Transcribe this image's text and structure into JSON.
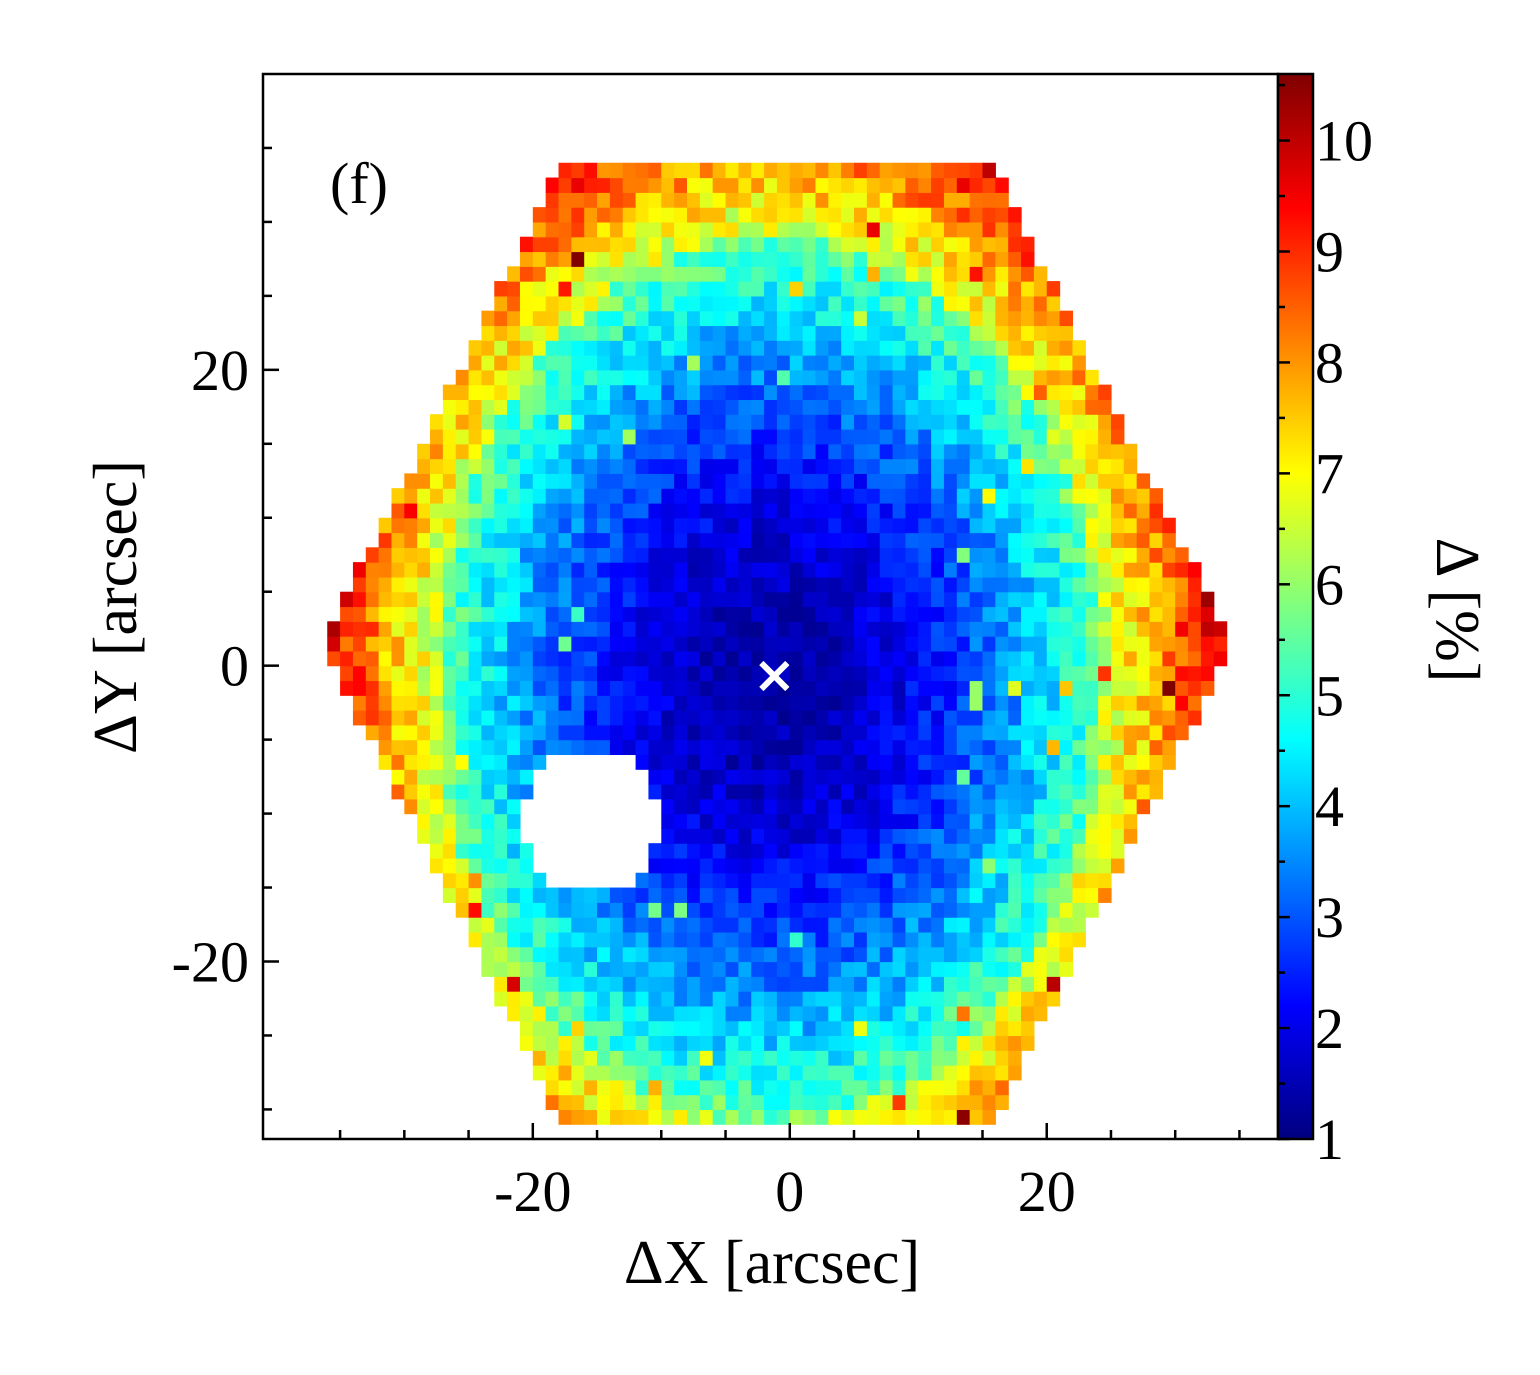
{
  "chart_data": {
    "type": "heatmap",
    "panel_label": "(f)",
    "xlabel": "ΔX [arcsec]",
    "ylabel": "ΔY [arcsec]",
    "colorbar_label": "Δ [%]",
    "xlim": [
      -41,
      38
    ],
    "ylim": [
      -32,
      40
    ],
    "x_ticks": [
      -20,
      0,
      20
    ],
    "y_ticks": [
      -20,
      0,
      20
    ],
    "x_tick_labels": [
      "-20",
      "0",
      "20"
    ],
    "y_tick_labels": [
      "-20",
      "0",
      "20"
    ],
    "colorbar_range": [
      1,
      10.6
    ],
    "colorbar_ticks": [
      1,
      2,
      3,
      4,
      5,
      6,
      7,
      8,
      9,
      10
    ],
    "colorbar_tick_labels": [
      "1",
      "2",
      "3",
      "4",
      "5",
      "6",
      "7",
      "8",
      "9",
      "10"
    ],
    "center_marker": {
      "x": -1.2,
      "y": -0.7,
      "symbol": "×",
      "color": "#ffffff"
    },
    "grid": false,
    "description_of_field": "Hexagonal field of view; values rise from ~1.5% at the center to ~8-10% at the rim; a masked (blank) region near (-15, -10)",
    "colormap": [
      "#00007f",
      "#0000ff",
      "#007fff",
      "#00ffff",
      "#7fff7f",
      "#ffff00",
      "#ff7f00",
      "#ff0000",
      "#7f0000"
    ]
  }
}
